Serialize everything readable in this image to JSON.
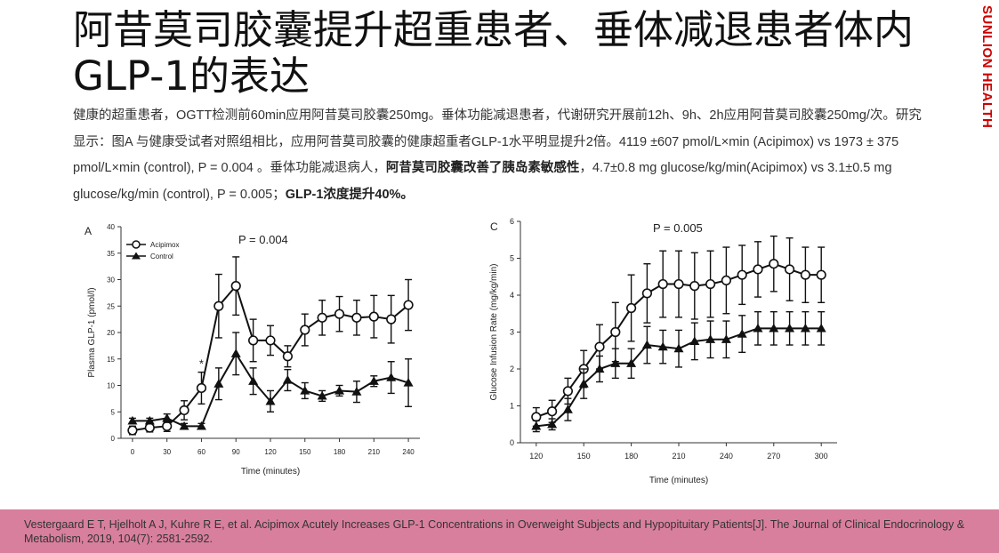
{
  "slide": {
    "title": "阿昔莫司胶囊提升超重患者、垂体减退患者体内GLP-1的表达",
    "brand": "SUNLION HEALTH",
    "body_parts": [
      "健康的超重患者，OGTT检测前60min应用阿昔莫司胶囊250mg。垂体功能减退患者，代谢研究开展前12h、9h、2h应用阿昔莫司胶囊250mg/次。研究显示：图A 与健康受试者对照组相比，应用阿昔莫司胶囊的健康超重者GLP-1水平明显提升2倍。4119 ±607 pmol/L×min (Acipimox) vs 1973 ± 375 pmol/L×min (control), P = 0.004 。垂体功能减退病人，",
      "阿昔莫司胶囊改善了胰岛素敏感性",
      "，4.7±0.8 mg glucose/kg/min(Acipimox) vs 3.1±0.5 mg glucose/kg/min (control), P = 0.005；",
      "GLP-1浓度提升40%。"
    ],
    "reference": "Vestergaard E T, Hjelholt A J, Kuhre R E, et al. Acipimox Acutely Increases GLP-1 Concentrations in Overweight Subjects and Hypopituitary Patients[J]. The Journal of Clinical Endocrinology & Metabolism, 2019, 104(7): 2581-2592.",
    "colors": {
      "footer": "#d97f9e",
      "brand": "#cc0000"
    }
  },
  "chart_data": [
    {
      "type": "line",
      "panel": "A",
      "annotation": "P = 0.004",
      "star": "*",
      "xlabel": "Time (minutes)",
      "ylabel": "Plasma GLP-1 (pmol/l)",
      "xlim": [
        -10,
        250
      ],
      "ylim": [
        0,
        40
      ],
      "xticks": [
        0,
        30,
        60,
        90,
        120,
        150,
        180,
        210,
        240
      ],
      "yticks": [
        0,
        5,
        10,
        15,
        20,
        25,
        30,
        35,
        40
      ],
      "legend": [
        "Acipimox",
        "Control"
      ],
      "legend_position": "top-left",
      "series": [
        {
          "name": "Acipimox",
          "marker": "open-circle",
          "x": [
            0,
            15,
            30,
            45,
            60,
            75,
            90,
            105,
            120,
            135,
            150,
            165,
            180,
            195,
            210,
            225,
            240
          ],
          "y": [
            1.5,
            2.0,
            2.3,
            5.3,
            9.5,
            25.0,
            28.8,
            18.5,
            18.5,
            15.5,
            20.5,
            22.8,
            23.5,
            22.8,
            23.0,
            22.5,
            25.2
          ],
          "err": [
            0.8,
            0.8,
            1.0,
            1.8,
            3.0,
            6.0,
            5.5,
            4.0,
            2.8,
            2.0,
            3.0,
            3.3,
            3.3,
            3.3,
            4.0,
            4.5,
            4.8
          ]
        },
        {
          "name": "Control",
          "marker": "filled-triangle",
          "x": [
            0,
            15,
            30,
            45,
            60,
            75,
            90,
            105,
            120,
            135,
            150,
            165,
            180,
            195,
            210,
            225,
            240
          ],
          "y": [
            3.3,
            3.3,
            3.8,
            2.3,
            2.3,
            10.3,
            16.0,
            10.8,
            7.0,
            11.0,
            9.0,
            8.0,
            9.0,
            8.8,
            10.8,
            11.5,
            10.5
          ],
          "err": [
            0.5,
            0.5,
            0.8,
            0.5,
            0.5,
            3.0,
            4.0,
            2.5,
            2.0,
            2.0,
            1.5,
            1.0,
            1.0,
            2.0,
            1.0,
            3.0,
            4.5
          ]
        }
      ]
    },
    {
      "type": "line",
      "panel": "C",
      "annotation": "P = 0.005",
      "xlabel": "Time (minutes)",
      "ylabel": "Glucose Infusion Rate (mg/kg/min)",
      "xlim": [
        110,
        310
      ],
      "ylim": [
        0,
        6
      ],
      "xticks": [
        120,
        150,
        180,
        210,
        240,
        270,
        300
      ],
      "yticks": [
        0,
        1,
        2,
        3,
        4,
        5,
        6
      ],
      "series": [
        {
          "name": "Acipimox",
          "marker": "open-circle",
          "x": [
            120,
            130,
            140,
            150,
            160,
            170,
            180,
            190,
            200,
            210,
            220,
            230,
            240,
            250,
            260,
            270,
            280,
            290,
            300
          ],
          "y": [
            0.7,
            0.85,
            1.4,
            2.0,
            2.6,
            3.0,
            3.65,
            4.05,
            4.3,
            4.3,
            4.25,
            4.3,
            4.4,
            4.55,
            4.7,
            4.85,
            4.7,
            4.55,
            4.55
          ],
          "err": [
            0.25,
            0.3,
            0.35,
            0.5,
            0.6,
            0.8,
            0.9,
            0.8,
            0.9,
            0.9,
            0.9,
            0.9,
            0.9,
            0.8,
            0.75,
            0.75,
            0.85,
            0.75,
            0.75
          ]
        },
        {
          "name": "Control",
          "marker": "filled-triangle",
          "x": [
            120,
            130,
            140,
            150,
            160,
            170,
            180,
            190,
            200,
            210,
            220,
            230,
            240,
            250,
            260,
            270,
            280,
            290,
            300
          ],
          "y": [
            0.45,
            0.5,
            0.9,
            1.6,
            2.0,
            2.15,
            2.15,
            2.65,
            2.6,
            2.55,
            2.75,
            2.8,
            2.8,
            2.95,
            3.1,
            3.1,
            3.1,
            3.1,
            3.1
          ],
          "err": [
            0.15,
            0.15,
            0.3,
            0.4,
            0.35,
            0.4,
            0.4,
            0.5,
            0.45,
            0.5,
            0.5,
            0.5,
            0.5,
            0.5,
            0.45,
            0.45,
            0.45,
            0.45,
            0.45
          ]
        }
      ]
    }
  ]
}
